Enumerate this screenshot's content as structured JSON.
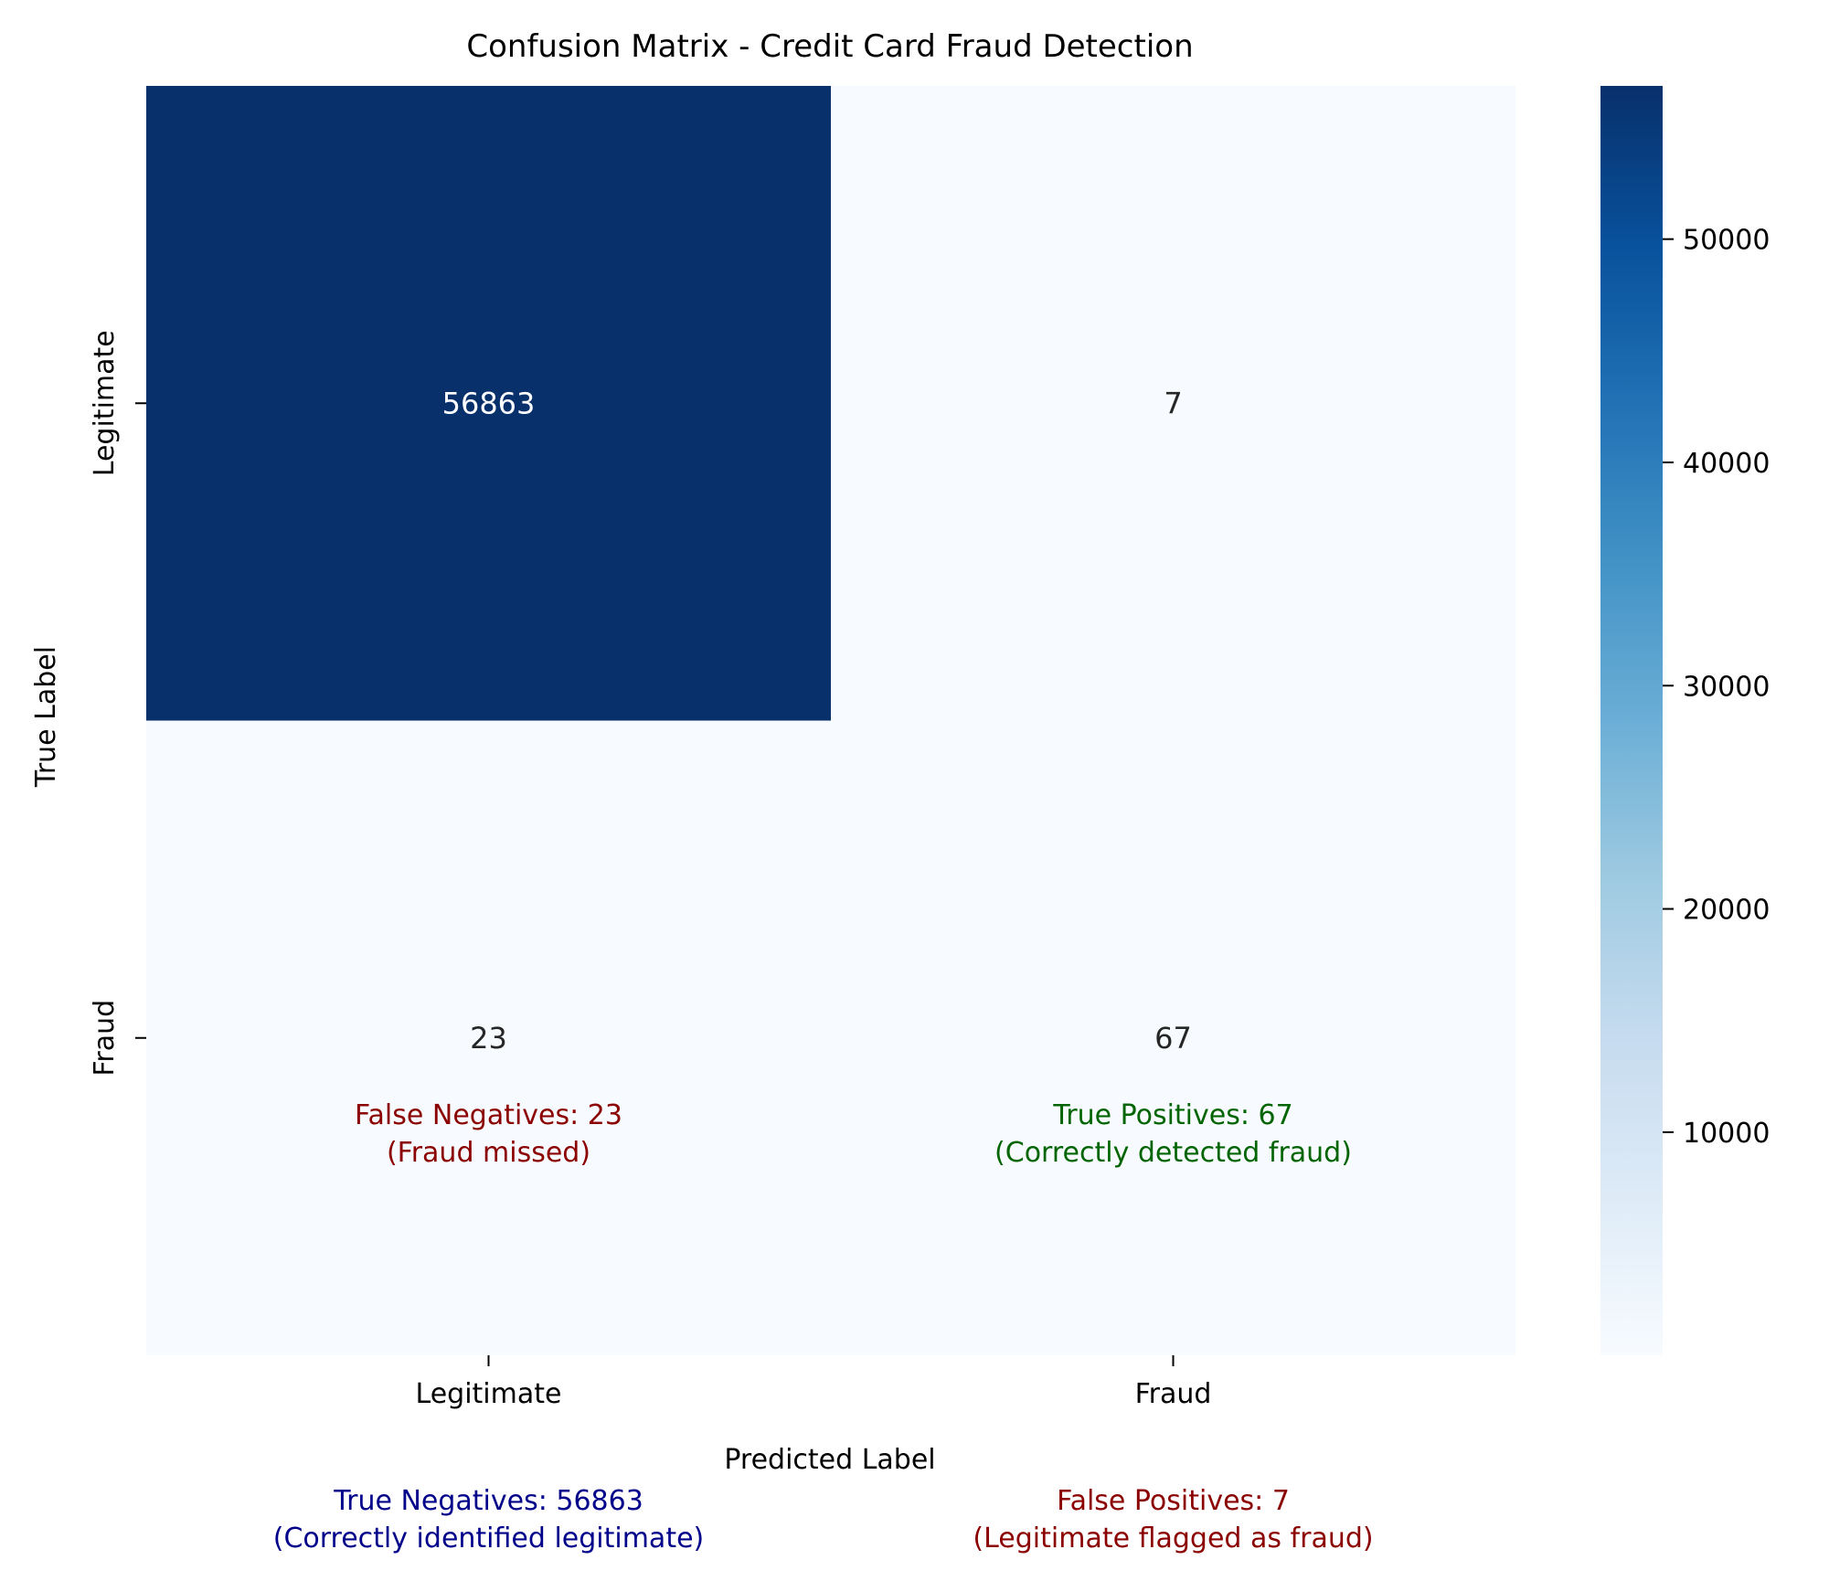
{
  "chart_data": {
    "type": "heatmap",
    "title": "Confusion Matrix - Credit Card Fraud Detection",
    "xlabel": "Predicted Label",
    "ylabel": "True Label",
    "x_categories": [
      "Legitimate",
      "Fraud"
    ],
    "y_categories": [
      "Legitimate",
      "Fraud"
    ],
    "values": [
      [
        56863,
        7
      ],
      [
        23,
        67
      ]
    ],
    "colormap": "Blues",
    "colorbar": {
      "ticks": [
        "10000",
        "20000",
        "30000",
        "40000",
        "50000"
      ],
      "tick_values": [
        10000,
        20000,
        30000,
        40000,
        50000
      ],
      "range": [
        7,
        56863
      ]
    },
    "annotations": [
      {
        "line1": "False Negatives: 23",
        "line2": "(Fraud missed)",
        "color": "#8b0000"
      },
      {
        "line1": "True Positives: 67",
        "line2": "(Correctly detected fraud)",
        "color": "#006400"
      },
      {
        "line1": "True Negatives: 56863",
        "line2": "(Correctly identified legitimate)",
        "color": "#00008b"
      },
      {
        "line1": "False Positives: 7",
        "line2": "(Legitimate flagged as fraud)",
        "color": "#8b0000"
      }
    ],
    "colors": {
      "cell_high": "#08306b",
      "cell_low": "#f7fbff",
      "text_on_dark": "#ffffff",
      "text_on_light": "#262626"
    }
  }
}
